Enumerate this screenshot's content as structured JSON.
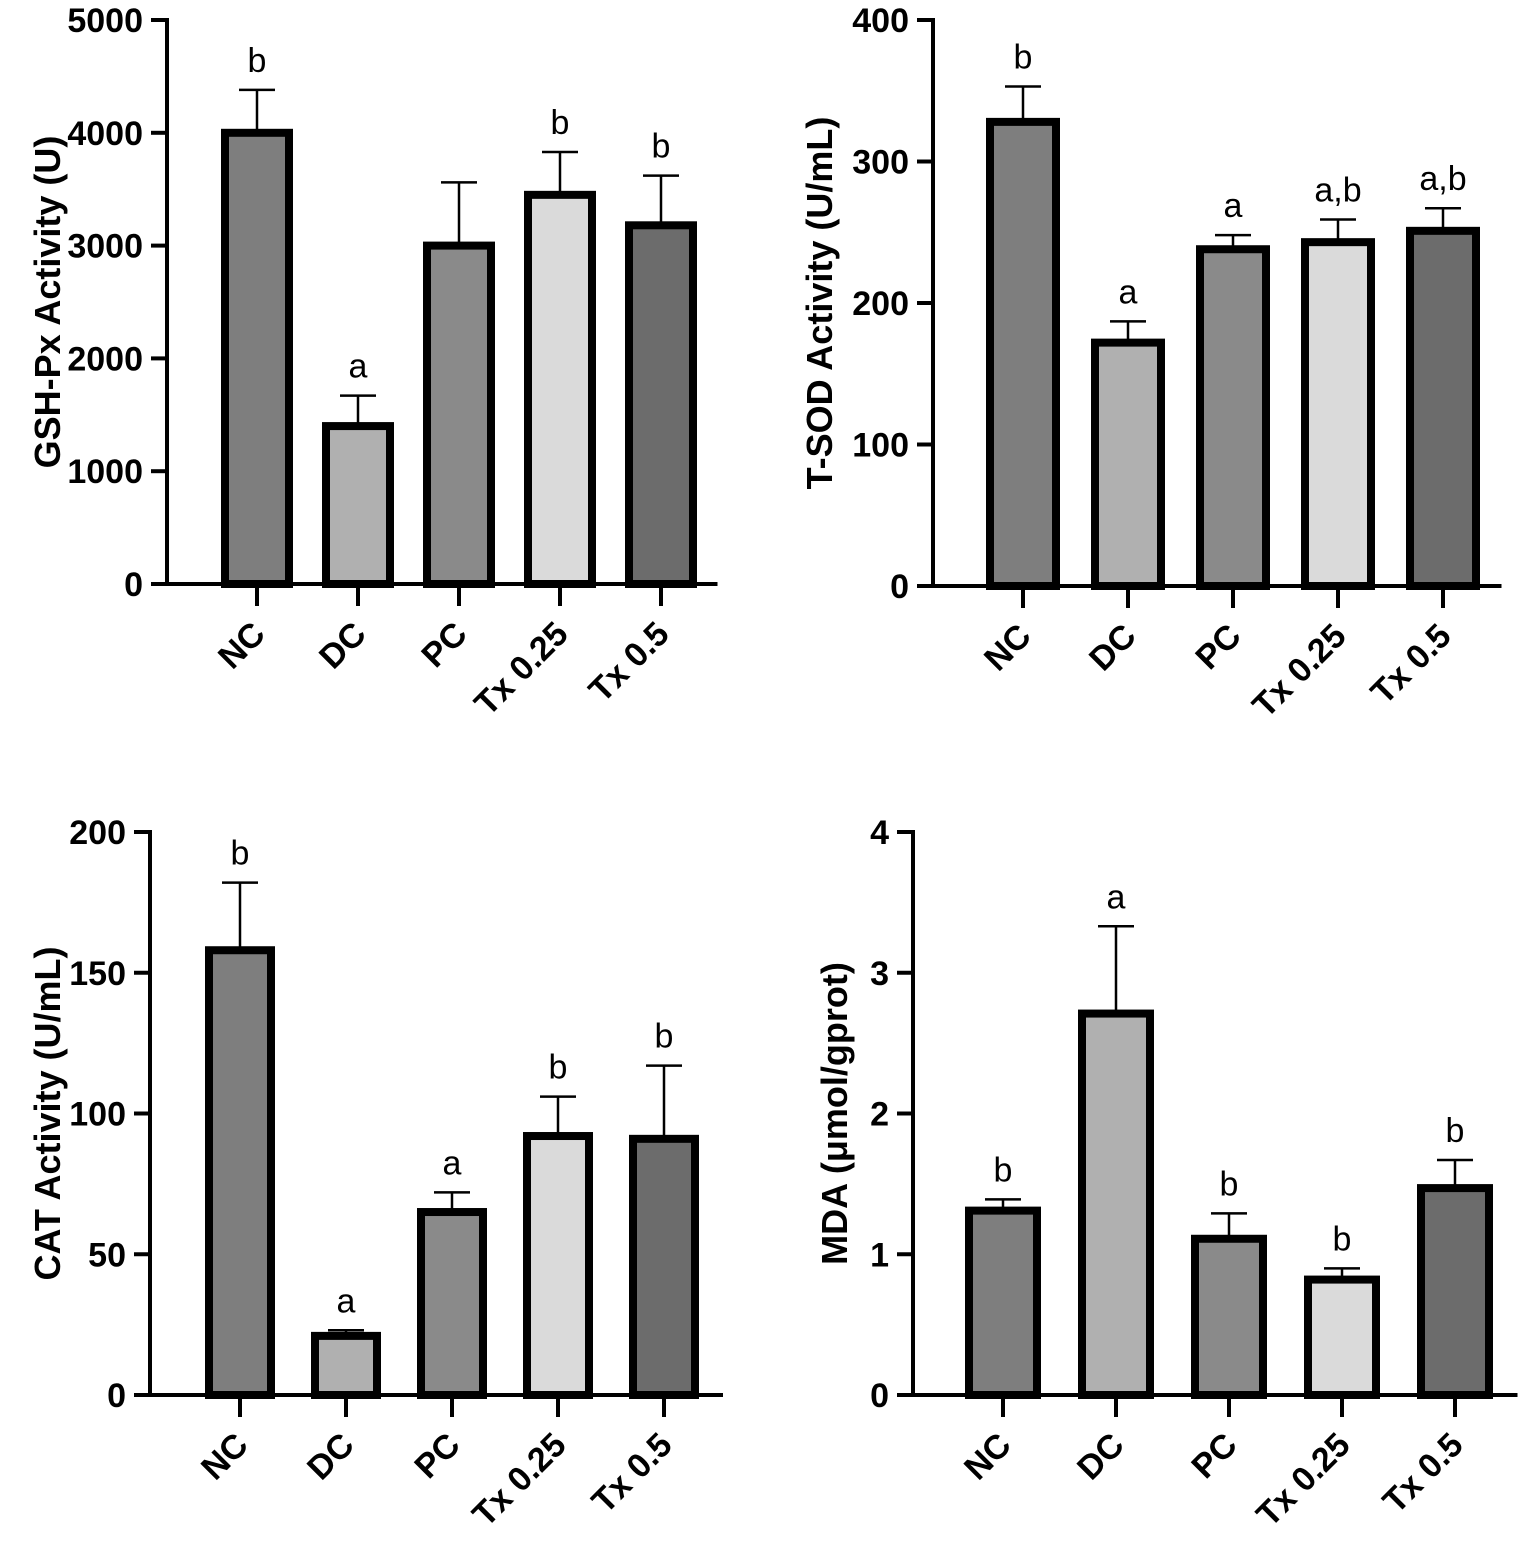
{
  "chart_data": [
    {
      "type": "bar",
      "ylabel": "GSH-Px Activity (U)",
      "ylim": [
        0,
        5000
      ],
      "yticks": [
        0,
        1000,
        2000,
        3000,
        4000,
        5000
      ],
      "categories": [
        "NC",
        "DC",
        "PC",
        "Tx 0.25",
        "Tx 0.5"
      ],
      "values": [
        4000,
        1400,
        3000,
        3450,
        3180
      ],
      "error": [
        380,
        270,
        560,
        380,
        440
      ],
      "significance": [
        "b",
        "a",
        "",
        "b",
        "b"
      ],
      "colors": [
        "#7e7e7e",
        "#b0b0b0",
        "#8a8a8a",
        "#dadada",
        "#6c6c6c"
      ]
    },
    {
      "type": "bar",
      "ylabel": "T-SOD Activity (U/mL)",
      "ylim": [
        0,
        400
      ],
      "yticks": [
        0,
        100,
        200,
        300,
        400
      ],
      "categories": [
        "NC",
        "DC",
        "PC",
        "Tx 0.25",
        "Tx 0.5"
      ],
      "values": [
        328,
        172,
        238,
        243,
        251
      ],
      "error": [
        25,
        15,
        10,
        16,
        16
      ],
      "significance": [
        "b",
        "a",
        "a",
        "a,b",
        "a,b"
      ],
      "colors": [
        "#7e7e7e",
        "#b0b0b0",
        "#8a8a8a",
        "#dadada",
        "#6c6c6c"
      ]
    },
    {
      "type": "bar",
      "ylabel": "CAT Activity (U/mL)",
      "ylim": [
        0,
        200
      ],
      "yticks": [
        0,
        50,
        100,
        150,
        200
      ],
      "categories": [
        "NC",
        "DC",
        "PC",
        "Tx 0.25",
        "Tx 0.5"
      ],
      "values": [
        158,
        21,
        65,
        92,
        91
      ],
      "error": [
        24,
        2,
        7,
        14,
        26
      ],
      "significance": [
        "b",
        "a",
        "a",
        "b",
        "b"
      ],
      "colors": [
        "#7e7e7e",
        "#b0b0b0",
        "#8a8a8a",
        "#dadada",
        "#6c6c6c"
      ]
    },
    {
      "type": "bar",
      "ylabel": "MDA (μmol/gprot)",
      "ylim": [
        0,
        4
      ],
      "yticks": [
        0,
        1,
        2,
        3,
        4
      ],
      "categories": [
        "NC",
        "DC",
        "PC",
        "Tx 0.25",
        "Tx 0.5"
      ],
      "values": [
        1.31,
        2.71,
        1.11,
        0.82,
        1.47
      ],
      "error": [
        0.08,
        0.62,
        0.18,
        0.08,
        0.2
      ],
      "significance": [
        "b",
        "a",
        "b",
        "b",
        "b"
      ],
      "colors": [
        "#7e7e7e",
        "#b0b0b0",
        "#8a8a8a",
        "#dadada",
        "#6c6c6c"
      ]
    }
  ]
}
